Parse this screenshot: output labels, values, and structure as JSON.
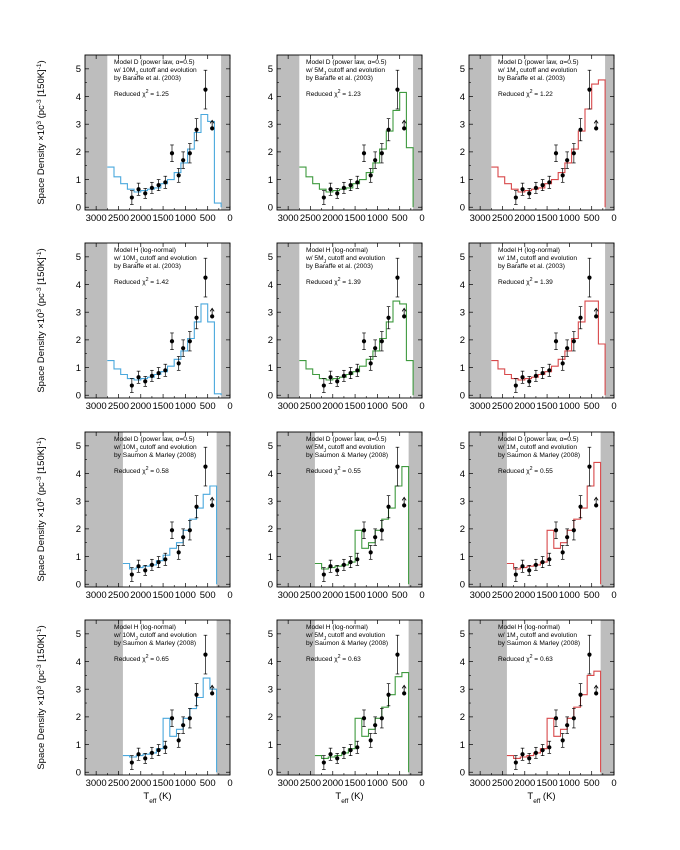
{
  "figure": {
    "ylabel": "Space Density ×10³ (pc⁻³ [150K]⁻¹)",
    "xlabel": "T_eff (K)"
  },
  "axes": {
    "xticks": [
      3000,
      2500,
      2000,
      1500,
      1000,
      500,
      0
    ],
    "yticks": [
      0,
      1,
      2,
      3,
      4,
      5
    ],
    "xlim": [
      3250,
      0
    ],
    "ylim": [
      -0.1,
      5.5
    ]
  },
  "observed": {
    "x": [
      2200,
      2050,
      1900,
      1750,
      1600,
      1450,
      1300,
      1150,
      1050,
      900,
      750,
      550,
      400
    ],
    "y": [
      0.35,
      0.65,
      0.5,
      0.7,
      0.8,
      0.9,
      1.95,
      1.15,
      1.7,
      1.95,
      2.8,
      4.25,
      2.85
    ],
    "err": [
      0.25,
      0.22,
      0.18,
      0.2,
      0.2,
      0.22,
      0.3,
      0.25,
      0.3,
      0.35,
      0.4,
      0.7,
      0.25
    ],
    "lower_limit_index": 12
  },
  "colors": {
    "10MJ": "#4aa8dd",
    "5MJ": "#3f9a3f",
    "1MJ": "#d8484a",
    "shade": "#bdbdbd"
  },
  "chart_data": [
    {
      "type": "line",
      "model_title": "Model D (power law, α=0.5)",
      "cutoff": "w/ 10MJ cutoff and evolution",
      "reference": "by Baraffe et al. (2003)",
      "chi2": "Reduced χ² = 1.25",
      "color_key": "10MJ",
      "shade_left": 2750,
      "shade_right": 200,
      "bin_edges": [
        2750,
        2600,
        2450,
        2300,
        2150,
        2000,
        1850,
        1700,
        1550,
        1400,
        1250,
        1100,
        950,
        800,
        650,
        500,
        350,
        200
      ],
      "model_y": [
        1.45,
        1.1,
        0.85,
        0.65,
        0.55,
        0.6,
        0.65,
        0.7,
        0.85,
        1.0,
        1.25,
        1.6,
        2.1,
        2.7,
        3.35,
        3.1,
        0.15
      ]
    },
    {
      "type": "line",
      "model_title": "Model D (power law, α=0.5)",
      "cutoff": "w/ 5MJ cutoff and evolution",
      "reference": "by Baraffe et al. (2003)",
      "chi2": "Reduced χ² = 1.23",
      "color_key": "5MJ",
      "shade_left": 2750,
      "shade_right": 200,
      "bin_edges": [
        2750,
        2600,
        2450,
        2300,
        2150,
        2000,
        1850,
        1700,
        1550,
        1400,
        1250,
        1100,
        950,
        800,
        650,
        500,
        350,
        200
      ],
      "model_y": [
        1.45,
        1.1,
        0.85,
        0.65,
        0.55,
        0.6,
        0.65,
        0.7,
        0.85,
        1.0,
        1.25,
        1.6,
        2.1,
        2.75,
        3.5,
        4.15,
        2.15
      ]
    },
    {
      "type": "line",
      "model_title": "Model D (power law, α=0.5)",
      "cutoff": "w/ 1MJ cutoff and evolution",
      "reference": "by Baraffe et al. (2003)",
      "chi2": "Reduced χ² = 1.22",
      "color_key": "1MJ",
      "shade_left": 2750,
      "shade_right": 200,
      "bin_edges": [
        2750,
        2600,
        2450,
        2300,
        2150,
        2000,
        1850,
        1700,
        1550,
        1400,
        1250,
        1100,
        950,
        800,
        650,
        500,
        350,
        200
      ],
      "model_y": [
        1.45,
        1.1,
        0.85,
        0.65,
        0.55,
        0.6,
        0.65,
        0.7,
        0.85,
        1.0,
        1.25,
        1.6,
        2.1,
        2.75,
        3.55,
        4.45,
        4.6
      ]
    },
    {
      "type": "line",
      "model_title": "Model H (log-normal)",
      "cutoff": "w/ 10MJ cutoff and evolution",
      "reference": "by Baraffe et al. (2003)",
      "chi2": "Reduced χ² = 1.42",
      "color_key": "10MJ",
      "shade_left": 2750,
      "shade_right": 200,
      "bin_edges": [
        2750,
        2600,
        2450,
        2300,
        2150,
        2000,
        1850,
        1700,
        1550,
        1400,
        1250,
        1100,
        950,
        800,
        650,
        500,
        350,
        200
      ],
      "model_y": [
        1.25,
        0.95,
        0.75,
        0.6,
        0.55,
        0.6,
        0.65,
        0.75,
        0.85,
        1.05,
        1.3,
        1.6,
        2.05,
        2.65,
        3.3,
        2.65,
        0.05
      ]
    },
    {
      "type": "line",
      "model_title": "Model H (log-normal)",
      "cutoff": "w/ 5MJ cutoff and evolution",
      "reference": "by Baraffe et al. (2003)",
      "chi2": "Reduced χ² = 1.39",
      "color_key": "5MJ",
      "shade_left": 2750,
      "shade_right": 200,
      "bin_edges": [
        2750,
        2600,
        2450,
        2300,
        2150,
        2000,
        1850,
        1700,
        1550,
        1400,
        1250,
        1100,
        950,
        800,
        650,
        500,
        350,
        200
      ],
      "model_y": [
        1.25,
        0.95,
        0.75,
        0.6,
        0.55,
        0.6,
        0.65,
        0.75,
        0.85,
        1.05,
        1.3,
        1.6,
        2.05,
        2.65,
        3.4,
        3.3,
        1.25
      ]
    },
    {
      "type": "line",
      "model_title": "Model H (log-normal)",
      "cutoff": "w/ 1MJ cutoff and evolution",
      "reference": "by Baraffe et al. (2003)",
      "chi2": "Reduced χ² = 1.39",
      "color_key": "1MJ",
      "shade_left": 2750,
      "shade_right": 200,
      "bin_edges": [
        2750,
        2600,
        2450,
        2300,
        2150,
        2000,
        1850,
        1700,
        1550,
        1400,
        1250,
        1100,
        950,
        800,
        650,
        500,
        350,
        200
      ],
      "model_y": [
        1.25,
        0.95,
        0.75,
        0.6,
        0.55,
        0.6,
        0.65,
        0.75,
        0.85,
        1.05,
        1.3,
        1.6,
        2.05,
        2.65,
        3.4,
        3.4,
        1.85
      ]
    },
    {
      "type": "line",
      "model_title": "Model D (power law, α=0.5)",
      "cutoff": "w/ 10MJ cutoff and evolution",
      "reference": "by Saumon & Marley (2008)",
      "chi2": "Reduced χ² = 0.58",
      "color_key": "10MJ",
      "shade_left": 2400,
      "shade_right": 300,
      "bin_edges": [
        2400,
        2250,
        2100,
        1950,
        1800,
        1650,
        1500,
        1350,
        1200,
        1050,
        900,
        750,
        600,
        450,
        300
      ],
      "model_y": [
        0.75,
        0.55,
        0.6,
        0.65,
        0.7,
        0.85,
        1.05,
        1.3,
        1.5,
        1.95,
        2.35,
        2.75,
        3.25,
        3.55
      ]
    },
    {
      "type": "line",
      "model_title": "Model D (power law, α=0.5)",
      "cutoff": "w/ 5MJ cutoff and evolution",
      "reference": "by Saumon & Marley (2008)",
      "chi2": "Reduced χ² = 0.55",
      "color_key": "5MJ",
      "shade_left": 2400,
      "shade_right": 300,
      "bin_edges": [
        2400,
        2250,
        2100,
        1950,
        1800,
        1650,
        1500,
        1350,
        1200,
        1050,
        900,
        750,
        600,
        450,
        300
      ],
      "model_y": [
        0.75,
        0.55,
        0.6,
        0.65,
        0.7,
        0.8,
        1.95,
        1.3,
        1.5,
        1.95,
        2.35,
        2.75,
        3.55,
        4.25
      ]
    },
    {
      "type": "line",
      "model_title": "Model D (power law, α=0.5)",
      "cutoff": "w/ 1MJ cutoff and evolution",
      "reference": "by Saumon & Marley (2008)",
      "chi2": "Reduced χ² = 0.55",
      "color_key": "1MJ",
      "shade_left": 2400,
      "shade_right": 300,
      "bin_edges": [
        2400,
        2250,
        2100,
        1950,
        1800,
        1650,
        1500,
        1350,
        1200,
        1050,
        900,
        750,
        600,
        450,
        300
      ],
      "model_y": [
        0.75,
        0.55,
        0.6,
        0.65,
        0.7,
        0.8,
        1.95,
        1.3,
        1.5,
        1.95,
        2.35,
        2.75,
        3.55,
        4.4
      ]
    },
    {
      "type": "line",
      "model_title": "Model H (log-normal)",
      "cutoff": "w/ 10MJ cutoff and evolution",
      "reference": "by Saumon & Marley (2008)",
      "chi2": "Reduced χ² = 0.65",
      "color_key": "10MJ",
      "shade_left": 2400,
      "shade_right": 300,
      "bin_edges": [
        2400,
        2250,
        2100,
        1950,
        1800,
        1650,
        1500,
        1350,
        1200,
        1050,
        900,
        750,
        600,
        450,
        300
      ],
      "model_y": [
        0.6,
        0.55,
        0.6,
        0.65,
        0.7,
        0.85,
        1.95,
        1.3,
        1.55,
        1.95,
        2.3,
        2.7,
        3.4,
        3.0
      ]
    },
    {
      "type": "line",
      "model_title": "Model H (log-normal)",
      "cutoff": "w/ 5MJ cutoff and evolution",
      "reference": "by Saumon & Marley (2008)",
      "chi2": "Reduced χ² = 0.63",
      "color_key": "5MJ",
      "shade_left": 2400,
      "shade_right": 300,
      "bin_edges": [
        2400,
        2250,
        2100,
        1950,
        1800,
        1650,
        1500,
        1350,
        1200,
        1050,
        900,
        750,
        600,
        450,
        300
      ],
      "model_y": [
        0.6,
        0.5,
        0.55,
        0.6,
        0.7,
        0.85,
        1.95,
        1.3,
        1.55,
        1.95,
        2.35,
        2.8,
        3.45,
        3.6
      ]
    },
    {
      "type": "line",
      "model_title": "Model H (log-normal)",
      "cutoff": "w/ 1MJ cutoff and evolution",
      "reference": "by Saumon & Marley (2008)",
      "chi2": "Reduced χ² = 0.63",
      "color_key": "1MJ",
      "shade_left": 2400,
      "shade_right": 300,
      "bin_edges": [
        2400,
        2250,
        2100,
        1950,
        1800,
        1650,
        1500,
        1350,
        1200,
        1050,
        900,
        750,
        600,
        450,
        300
      ],
      "model_y": [
        0.6,
        0.5,
        0.55,
        0.6,
        0.7,
        0.85,
        1.95,
        1.3,
        1.55,
        1.95,
        2.35,
        2.8,
        3.5,
        3.65
      ]
    }
  ]
}
